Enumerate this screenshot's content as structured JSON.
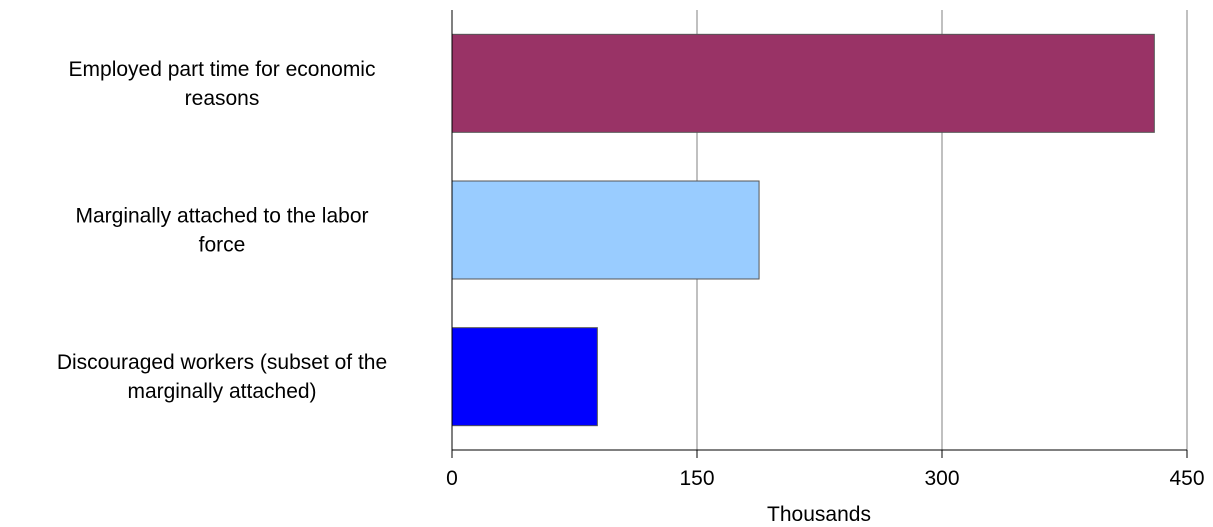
{
  "chart_data": {
    "type": "bar",
    "orientation": "horizontal",
    "categories": [
      "Employed part time for economic reasons",
      "Marginally attached to the labor force",
      "Discouraged workers (subset of the marginally attached)"
    ],
    "category_label_lines": [
      [
        "Employed part time for economic",
        "reasons"
      ],
      [
        "Marginally attached to the labor",
        "force"
      ],
      [
        "Discouraged workers (subset of the",
        "marginally attached)"
      ]
    ],
    "values": [
      430,
      188,
      89
    ],
    "colors": [
      "#993366",
      "#99ccff",
      "#0000ff"
    ],
    "xlabel": "Thousands",
    "ylabel": "",
    "xlim": [
      0,
      450
    ],
    "xticks": [
      0,
      150,
      300,
      450
    ],
    "xtick_labels": [
      "0",
      "150",
      "300",
      "450"
    ],
    "grid": "vertical",
    "legend": "none"
  }
}
